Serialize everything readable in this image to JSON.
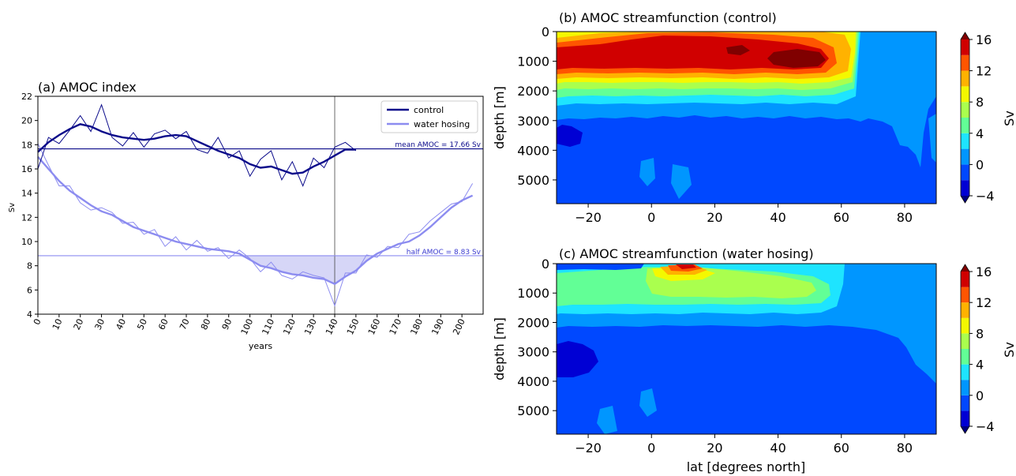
{
  "figure": {
    "panel_a_title": "(a) AMOC index",
    "panel_b_title": "(b) AMOC streamfunction (control)",
    "panel_c_title": "(c) AMOC streamfunction (water hosing)"
  },
  "colors": {
    "control": "#0a0a8a",
    "hosing": "#8c8cf0",
    "shade": "#c8c8f4",
    "axes": "#000000"
  },
  "contour_levels": [
    -4,
    -2,
    0,
    2,
    4,
    6,
    8,
    10,
    12,
    14,
    16
  ],
  "contour_colors": [
    "#000080",
    "#0000d4",
    "#0048ff",
    "#0096ff",
    "#1ee4ff",
    "#62ff96",
    "#aaff4e",
    "#f4f800",
    "#ffb200",
    "#ff5500",
    "#d00000",
    "#800000"
  ],
  "chart_data": [
    {
      "type": "line",
      "title": "(a) AMOC index",
      "xlabel": "years",
      "ylabel": "Sv",
      "xlim": [
        0,
        210
      ],
      "ylim": [
        4,
        22
      ],
      "xticks": [
        0,
        10,
        20,
        30,
        40,
        50,
        60,
        70,
        80,
        90,
        100,
        110,
        120,
        130,
        140,
        150,
        160,
        170,
        180,
        190,
        200
      ],
      "yticks": [
        4,
        6,
        8,
        10,
        12,
        14,
        16,
        18,
        20,
        22
      ],
      "legend": "top-right",
      "hlines": [
        {
          "y": 17.66,
          "label": "mean AMOC = 17.66 Sv",
          "series": "control"
        },
        {
          "y": 8.83,
          "label": "half AMOC = 8.83 Sv",
          "series": "water hosing"
        }
      ],
      "vline": {
        "x": 140
      },
      "shaded_region": {
        "between": "water hosing and half AMOC",
        "x_range": [
          88,
          163
        ]
      },
      "series": [
        {
          "name": "control",
          "x": [
            0,
            5,
            10,
            15,
            20,
            25,
            30,
            35,
            40,
            45,
            50,
            55,
            60,
            65,
            70,
            75,
            80,
            85,
            90,
            95,
            100,
            105,
            110,
            115,
            120,
            125,
            130,
            135,
            140,
            145,
            150
          ],
          "smooth": [
            17.4,
            18.2,
            18.8,
            19.3,
            19.7,
            19.5,
            19.1,
            18.8,
            18.6,
            18.5,
            18.4,
            18.5,
            18.7,
            18.8,
            18.7,
            18.3,
            17.9,
            17.5,
            17.2,
            16.9,
            16.4,
            16.1,
            16.2,
            15.9,
            15.6,
            15.7,
            16.2,
            16.6,
            17.1,
            17.6,
            17.6
          ],
          "raw": [
            16.0,
            18.6,
            18.1,
            19.2,
            20.4,
            19.1,
            21.3,
            18.6,
            17.9,
            19.0,
            17.8,
            18.9,
            19.2,
            18.5,
            19.1,
            17.6,
            17.3,
            18.6,
            16.9,
            17.5,
            15.4,
            16.8,
            17.5,
            15.1,
            16.6,
            14.6,
            16.9,
            16.1,
            17.8,
            18.2,
            17.5
          ]
        },
        {
          "name": "water hosing",
          "x": [
            0,
            5,
            10,
            15,
            20,
            25,
            30,
            35,
            40,
            45,
            50,
            55,
            60,
            65,
            70,
            75,
            80,
            85,
            90,
            95,
            100,
            105,
            110,
            115,
            120,
            125,
            130,
            135,
            140,
            145,
            150,
            155,
            160,
            165,
            170,
            175,
            180,
            185,
            190,
            195,
            200,
            205
          ],
          "smooth": [
            17.0,
            16.0,
            15.0,
            14.2,
            13.6,
            13.0,
            12.5,
            12.2,
            11.7,
            11.2,
            10.9,
            10.6,
            10.3,
            10.0,
            9.8,
            9.6,
            9.4,
            9.3,
            9.2,
            9.0,
            8.5,
            8.0,
            7.8,
            7.5,
            7.3,
            7.2,
            7.0,
            6.9,
            6.5,
            7.1,
            7.6,
            8.4,
            9.0,
            9.4,
            9.8,
            10.0,
            10.5,
            11.2,
            12.0,
            12.8,
            13.4,
            13.8
          ],
          "raw": [
            18.1,
            16.3,
            14.6,
            14.6,
            13.2,
            12.6,
            12.8,
            12.4,
            11.5,
            11.6,
            10.6,
            11.0,
            9.6,
            10.4,
            9.3,
            10.1,
            9.2,
            9.5,
            8.6,
            9.3,
            8.6,
            7.5,
            8.3,
            7.2,
            6.9,
            7.5,
            7.2,
            7.0,
            4.7,
            7.4,
            7.4,
            8.9,
            8.7,
            9.6,
            9.5,
            10.6,
            10.8,
            11.7,
            12.4,
            13.1,
            13.3,
            14.8
          ]
        }
      ]
    },
    {
      "type": "heatmap",
      "title": "(b) AMOC streamfunction (control)",
      "xlabel": "",
      "ylabel": "depth [m]",
      "xlim": [
        -30,
        90
      ],
      "ylim": [
        5800,
        0
      ],
      "xticks": [
        -20,
        0,
        20,
        40,
        60,
        80
      ],
      "yticks": [
        0,
        1000,
        2000,
        3000,
        4000,
        5000
      ],
      "colorbar": {
        "label": "Sv",
        "ticks": [
          -4,
          0,
          4,
          8,
          12,
          16
        ],
        "range": [
          -4,
          16
        ]
      }
    },
    {
      "type": "heatmap",
      "title": "(c) AMOC streamfunction (water hosing)",
      "xlabel": "lat [degrees  north]",
      "ylabel": "depth [m]",
      "xlim": [
        -30,
        90
      ],
      "ylim": [
        5800,
        0
      ],
      "xticks": [
        -20,
        0,
        20,
        40,
        60,
        80
      ],
      "yticks": [
        0,
        1000,
        2000,
        3000,
        4000,
        5000
      ],
      "colorbar": {
        "label": "Sv",
        "ticks": [
          -4,
          0,
          4,
          8,
          12,
          16
        ],
        "range": [
          -4,
          16
        ]
      }
    }
  ]
}
